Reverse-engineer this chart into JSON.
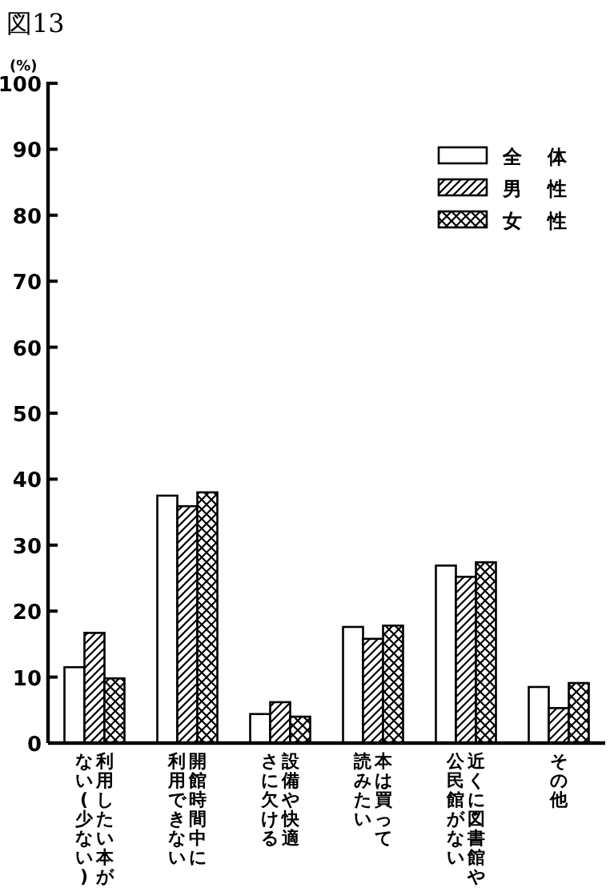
{
  "chart_data": {
    "type": "bar",
    "title": "図13",
    "ylabel": "(%)",
    "categories": [
      "利用したい本がない(少ない)",
      "開館時間中に利用できない",
      "設備や快適さに欠ける",
      "本は買って読みたい",
      "近くに図書館や公民館がない",
      "その他"
    ],
    "series": [
      {
        "name": "全 体",
        "color": "#ffffff",
        "values": [
          11.5,
          37.5,
          4.4,
          17.6,
          26.9,
          8.5
        ]
      },
      {
        "name": "男 性",
        "color": "#000000",
        "values": [
          16.7,
          35.9,
          6.2,
          15.8,
          25.2,
          5.3
        ]
      },
      {
        "name": "女 性",
        "color": "#000000",
        "values": [
          9.8,
          38.0,
          4.0,
          17.8,
          27.4,
          9.1
        ]
      }
    ],
    "ylim": [
      0,
      100
    ],
    "yticks": [
      0,
      10,
      20,
      30,
      40,
      50,
      60,
      70,
      80,
      90,
      100
    ],
    "legend": "top right",
    "grid": false
  }
}
